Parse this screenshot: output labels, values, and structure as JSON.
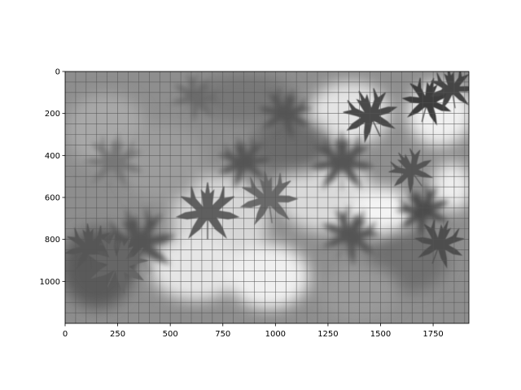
{
  "image": {
    "subject": "grayscale-photo-maple-leaves",
    "grid": true,
    "grid_spacing": 50,
    "extent": {
      "x": [
        0,
        1920
      ],
      "y": [
        1200,
        0
      ]
    },
    "colors": {
      "background": "#ffffff",
      "photo_mid": "#8a8a8a",
      "photo_light": "#f2f2f2",
      "photo_dark": "#3a3a3a",
      "grid": "#555555",
      "axis": "#000000"
    }
  },
  "axes": {
    "x_ticks": [
      {
        "value": 0,
        "label": "0"
      },
      {
        "value": 250,
        "label": "250"
      },
      {
        "value": 500,
        "label": "500"
      },
      {
        "value": 750,
        "label": "750"
      },
      {
        "value": 1000,
        "label": "1000"
      },
      {
        "value": 1250,
        "label": "1250"
      },
      {
        "value": 1500,
        "label": "1500"
      },
      {
        "value": 1750,
        "label": "1750"
      }
    ],
    "y_ticks": [
      {
        "value": 0,
        "label": "0"
      },
      {
        "value": 200,
        "label": "200"
      },
      {
        "value": 400,
        "label": "400"
      },
      {
        "value": 600,
        "label": "600"
      },
      {
        "value": 800,
        "label": "800"
      },
      {
        "value": 1000,
        "label": "1000"
      }
    ]
  }
}
